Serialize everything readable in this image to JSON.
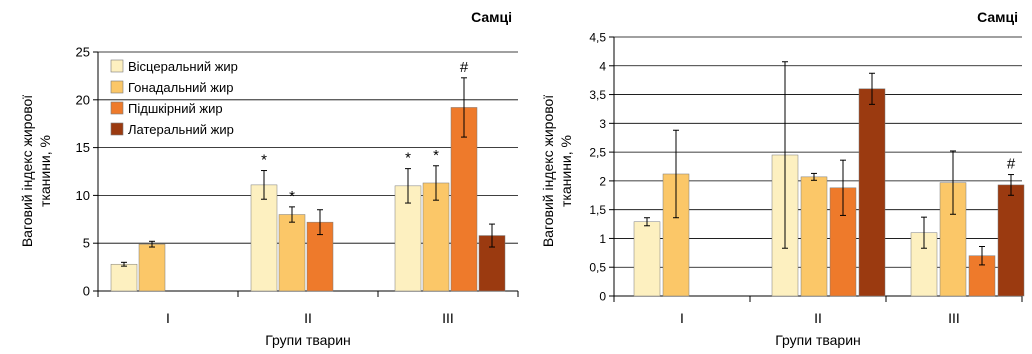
{
  "chart_data": [
    {
      "type": "bar",
      "title": "Самці",
      "xlabel": "Групи тварин",
      "ylabel": "Ваговий індекс жирової тканини, %",
      "ylim": [
        0,
        25
      ],
      "yticks": [
        "0",
        "5",
        "10",
        "15",
        "20",
        "25"
      ],
      "categories": [
        "I",
        "II",
        "III"
      ],
      "legend_position": "top-left",
      "grid": "horizontal",
      "series": [
        {
          "name": "Вісцеральний жир",
          "color": "#fdf0c0",
          "values": [
            2.8,
            11.1,
            11.0
          ],
          "errors": [
            0.2,
            1.5,
            1.8
          ],
          "marks": [
            "",
            "*",
            "*"
          ]
        },
        {
          "name": "Гонадальний жир",
          "color": "#fbc768",
          "values": [
            4.9,
            8.0,
            11.3
          ],
          "errors": [
            0.3,
            0.8,
            1.8
          ],
          "marks": [
            "",
            "*",
            "*"
          ]
        },
        {
          "name": "Підшкірний жир",
          "color": "#ee7a2b",
          "values": [
            null,
            7.2,
            19.2
          ],
          "errors": [
            null,
            1.3,
            3.1
          ],
          "marks": [
            "",
            "",
            "#"
          ]
        },
        {
          "name": "Латеральний жир",
          "color": "#9b3a10",
          "values": [
            null,
            null,
            5.8
          ],
          "errors": [
            null,
            null,
            1.2
          ],
          "marks": [
            "",
            "",
            ""
          ]
        }
      ]
    },
    {
      "type": "bar",
      "title": "Самці",
      "xlabel": "Групи тварин",
      "ylabel": "Ваговий індекс жирової тканини, %",
      "ylim": [
        0,
        4.5
      ],
      "yticks": [
        "0",
        "0,5",
        "1",
        "1,5",
        "2",
        "2,5",
        "3",
        "3,5",
        "4",
        "4,5"
      ],
      "categories": [
        "I",
        "II",
        "III"
      ],
      "grid": "horizontal",
      "series": [
        {
          "color": "#fdf0c0",
          "values": [
            1.29,
            2.45,
            1.1
          ],
          "errors": [
            0.07,
            1.62,
            0.27
          ],
          "marks": [
            "",
            "",
            ""
          ]
        },
        {
          "color": "#fbc768",
          "values": [
            2.12,
            2.07,
            1.97
          ],
          "errors": [
            0.76,
            0.06,
            0.55
          ],
          "marks": [
            "",
            "",
            ""
          ]
        },
        {
          "color": "#ee7a2b",
          "values": [
            null,
            1.88,
            0.7
          ],
          "errors": [
            null,
            0.48,
            0.16
          ],
          "marks": [
            "",
            "",
            ""
          ]
        },
        {
          "color": "#9b3a10",
          "values": [
            null,
            3.6,
            1.93
          ],
          "errors": [
            null,
            0.27,
            0.18
          ],
          "marks": [
            "",
            "",
            "#"
          ]
        }
      ]
    }
  ]
}
